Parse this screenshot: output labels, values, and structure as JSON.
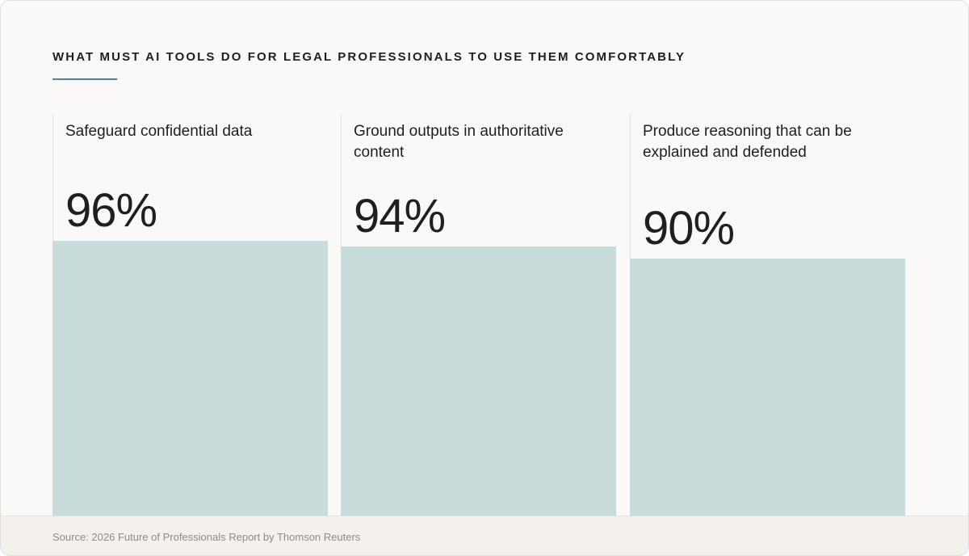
{
  "chart_data": {
    "type": "bar",
    "title": "WHAT MUST AI TOOLS DO FOR LEGAL PROFESSIONALS TO USE THEM COMFORTABLY",
    "categories": [
      "Safeguard confidential data",
      "Ground outputs in authoritative content",
      "Produce reasoning that can be explained and defended"
    ],
    "values": [
      96,
      94,
      90
    ],
    "value_labels": [
      "96%",
      "94%",
      "90%"
    ],
    "unit": "%",
    "ylim": [
      0,
      100
    ],
    "grid": false,
    "legend": "none"
  },
  "footer": {
    "source": "Source: 2026 Future of Professionals Report by Thomson Reuters"
  },
  "colors": {
    "bar": "#c7dcdb",
    "accent_rule": "#4a8a8a",
    "text": "#1f1f1f",
    "background": "#faf9f7"
  }
}
